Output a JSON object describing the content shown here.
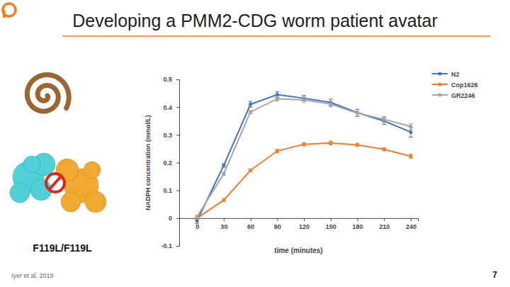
{
  "slide": {
    "title": "Developing a PMM2-CDG worm patient avatar",
    "genotype": "F119L/F119L",
    "citation": "Iyer et al, 2019",
    "page": 7
  },
  "chart_data": {
    "type": "line",
    "xlabel": "time (minutes)",
    "ylabel": "NADPH concentration (mmol/L)",
    "x": [
      0,
      30,
      60,
      90,
      120,
      150,
      180,
      210,
      240
    ],
    "xlim": [
      -20,
      248
    ],
    "xticks": [
      0,
      30,
      60,
      90,
      120,
      150,
      180,
      210,
      240
    ],
    "ylim": [
      -0.1,
      0.5
    ],
    "yticks": [
      -0.1,
      0,
      0.1,
      0.2,
      0.3,
      0.4,
      0.5
    ],
    "grid": false,
    "legend": "top-right",
    "marker": "circle",
    "series": [
      {
        "name": "N2",
        "color": "#4472c4",
        "values": [
          -0.01,
          0.19,
          0.41,
          0.445,
          0.432,
          0.417,
          0.38,
          0.35,
          0.31
        ],
        "errors": [
          0.01,
          0.006,
          0.01,
          0.01,
          0.01,
          0.012,
          0.012,
          0.012,
          0.018
        ]
      },
      {
        "name": "Cop1626",
        "color": "#ed7d31",
        "values": [
          0.0,
          0.065,
          0.172,
          0.242,
          0.266,
          0.271,
          0.264,
          0.248,
          0.223
        ],
        "errors": [
          0.005,
          0.006,
          0.005,
          0.006,
          0.006,
          0.007,
          0.006,
          0.006,
          0.008
        ]
      },
      {
        "name": "GR2246",
        "color": "#a5a5a5",
        "values": [
          0.005,
          0.16,
          0.382,
          0.43,
          0.426,
          0.411,
          0.378,
          0.356,
          0.33
        ],
        "errors": [
          0.005,
          0.006,
          0.006,
          0.008,
          0.01,
          0.01,
          0.012,
          0.01,
          0.01
        ]
      }
    ]
  }
}
